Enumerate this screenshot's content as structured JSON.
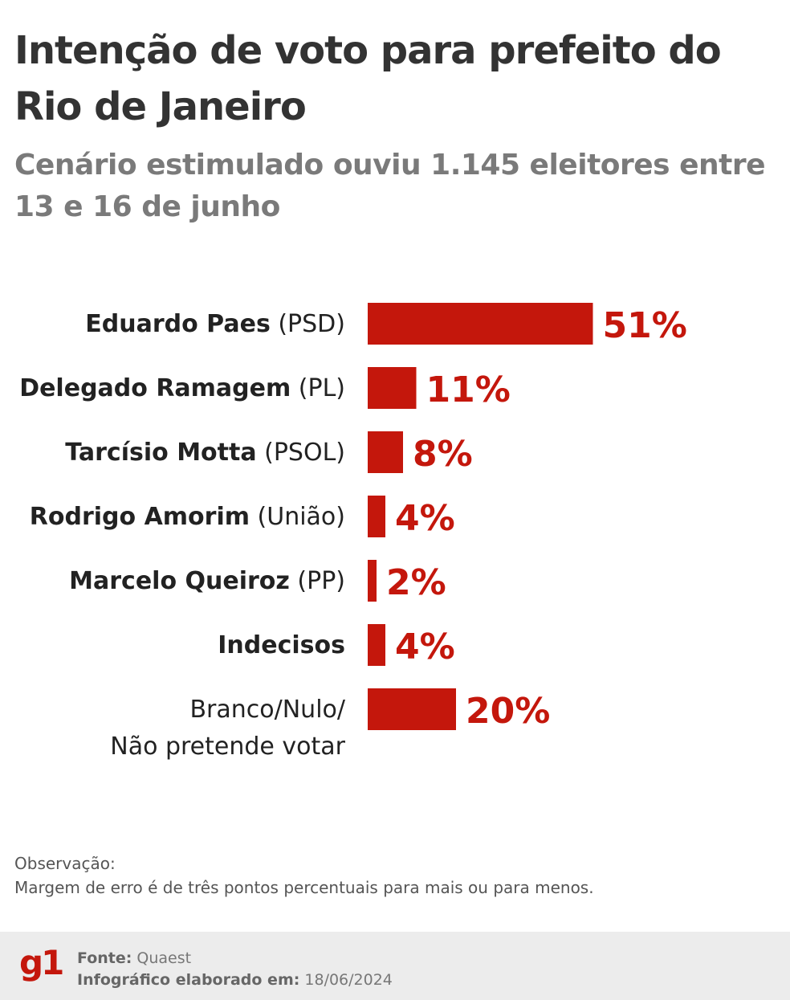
{
  "header": {
    "title": "Intenção de voto para prefeito do Rio de Janeiro",
    "subtitle": "Cenário estimulado ouviu 1.145 eleitores entre 13 e 16 de junho"
  },
  "chart_data": {
    "type": "bar",
    "orientation": "horizontal",
    "categories": [
      {
        "name": "Eduardo Paes",
        "party": "(PSD)"
      },
      {
        "name": "Delegado Ramagem",
        "party": "(PL)"
      },
      {
        "name": "Tarcísio Motta",
        "party": "(PSOL)"
      },
      {
        "name": "Rodrigo Amorim",
        "party": "(União)"
      },
      {
        "name": "Marcelo Queiroz",
        "party": "(PP)"
      },
      {
        "name": "Indecisos",
        "party": ""
      },
      {
        "name": "Branco/Nulo/ Não pretende votar",
        "party": "",
        "lines": [
          "Branco/Nulo/",
          "Não pretende votar"
        ],
        "plain": true
      }
    ],
    "values": [
      51,
      11,
      8,
      4,
      2,
      4,
      20
    ],
    "value_labels": [
      "51%",
      "11%",
      "8%",
      "4%",
      "2%",
      "4%",
      "20%"
    ],
    "unit": "%",
    "bar_color": "#c4170c"
  },
  "notes": {
    "heading": "Observação:",
    "text": "Margem de erro é de três pontos percentuais para mais ou para menos."
  },
  "footer": {
    "logo": "g1",
    "source_label": "Fonte:",
    "source_value": "Quaest",
    "date_label": "Infográfico elaborado em:",
    "date_value": "18/06/2024"
  }
}
